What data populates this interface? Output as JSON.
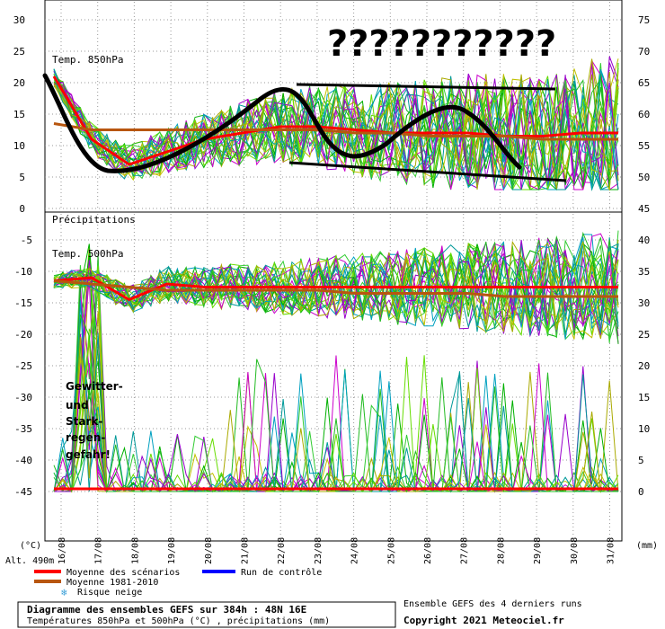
{
  "chart_data": [
    {
      "type": "line",
      "panel": "top",
      "label": "Temp. 850hPa",
      "left_axis_ticks": [
        "30",
        "25",
        "20",
        "15",
        "10",
        "5",
        "0"
      ],
      "right_axis_ticks": [
        "75",
        "70",
        "65",
        "60",
        "55",
        "50",
        "45"
      ],
      "ylim": [
        0,
        30
      ],
      "x": [
        "16/08",
        "17/08",
        "18/08",
        "19/08",
        "20/08",
        "21/08",
        "22/08",
        "23/08",
        "24/08",
        "25/08",
        "26/08",
        "27/08",
        "28/08",
        "29/08",
        "30/08",
        "31/08"
      ],
      "series": [
        {
          "name": "Moyenne des scénarios",
          "color": "#ff0000",
          "values": [
            21,
            11,
            7,
            9,
            11,
            12,
            13,
            13,
            12.5,
            12,
            12,
            12,
            11.5,
            11.5,
            12,
            12
          ]
        },
        {
          "name": "Moyenne 1981-2010",
          "color": "#b8560f",
          "values": [
            13.5,
            12.5,
            12.5,
            12.5,
            12.5,
            12.5,
            12.5,
            12.5,
            12,
            12,
            11.5,
            11.5,
            11.5,
            11,
            11,
            11
          ]
        }
      ],
      "annotation": "???????????"
    },
    {
      "type": "line",
      "panel": "bottom",
      "label_precip": "Précipitations",
      "label_temp": "Temp. 500hPa",
      "left_axis_ticks": [
        "-5",
        "-10",
        "-15",
        "-20",
        "-25",
        "-30",
        "-35",
        "-40",
        "-45"
      ],
      "right_axis_ticks": [
        "40",
        "35",
        "30",
        "25",
        "20",
        "15",
        "10",
        "5",
        "0"
      ],
      "ylim": [
        -47,
        -2
      ],
      "x": [
        "16/08",
        "17/08",
        "18/08",
        "19/08",
        "20/08",
        "21/08",
        "22/08",
        "23/08",
        "24/08",
        "25/08",
        "26/08",
        "27/08",
        "28/08",
        "29/08",
        "30/08",
        "31/08"
      ],
      "series": [
        {
          "name": "Moyenne des scénarios",
          "color": "#ff0000",
          "values": [
            -11.5,
            -11,
            -14.5,
            -12,
            -12.5,
            -12.5,
            -12.5,
            -12.5,
            -12.5,
            -12.5,
            -12.5,
            -12.5,
            -12.5,
            -12.5,
            -12.5,
            -12.5
          ]
        },
        {
          "name": "Moyenne 1981-2010",
          "color": "#b8560f",
          "values": [
            -11.5,
            -12,
            -12.5,
            -13,
            -13,
            -13,
            -13,
            -13,
            -13.5,
            -13.5,
            -13.5,
            -13.5,
            -14,
            -14,
            -14,
            -14
          ]
        }
      ],
      "annotation": [
        "Gewitter-",
        "und",
        "Stark-",
        "regen-",
        "gefahr!"
      ]
    }
  ],
  "axes": {
    "left_unit": "(°C)",
    "right_unit": "(mm)",
    "altitude": "Alt. 490m"
  },
  "legend": {
    "mean_label": "Moyenne des scénarios",
    "mean_color": "#ff0000",
    "climo_label": "Moyenne 1981-2010",
    "climo_color": "#b8560f",
    "control_label": "Run de contrôle",
    "control_color": "#0000ff",
    "snow_label": "Risque neige",
    "snow_icon": "snowflake-icon"
  },
  "footer": {
    "title": "Diagramme des ensembles GEFS sur 384h : 48N 16E",
    "subtitle": "Températures 850hPa et 500hPa (°C) , précipitations (mm)",
    "runs": "Ensemble GEFS des 4 derniers runs",
    "copyright": "Copyright 2021 Meteociel.fr"
  }
}
